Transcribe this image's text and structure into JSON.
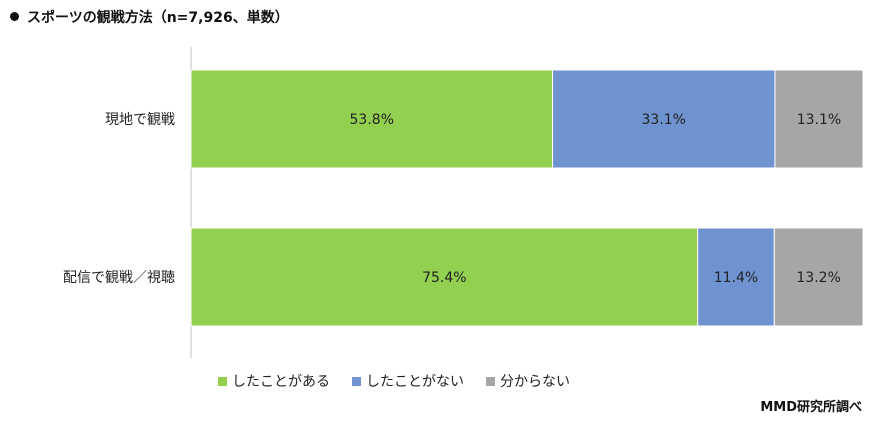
{
  "title": "スポーツの観戦方法（n=7,926、単数）",
  "source": "MMD研究所調べ",
  "colors": {
    "series": [
      "#92d050",
      "#6f93d0",
      "#a6a6a6"
    ],
    "axis": "#bfbfbf",
    "label": "#222222"
  },
  "chart_data": {
    "type": "bar",
    "orientation": "horizontal",
    "stacked": true,
    "categories": [
      "現地で観戦",
      "配信で観戦／視聴"
    ],
    "series": [
      {
        "name": "したことがある",
        "values": [
          53.8,
          75.4
        ],
        "labels": [
          "53.8%",
          "75.4%"
        ]
      },
      {
        "name": "したことがない",
        "values": [
          33.1,
          11.4
        ],
        "labels": [
          "33.1%",
          "11.4%"
        ]
      },
      {
        "name": "分からない",
        "values": [
          13.1,
          13.2
        ],
        "labels": [
          "13.1%",
          "13.2%"
        ]
      }
    ],
    "xlim": [
      0,
      100
    ],
    "grid": false,
    "legend_position": "bottom"
  }
}
